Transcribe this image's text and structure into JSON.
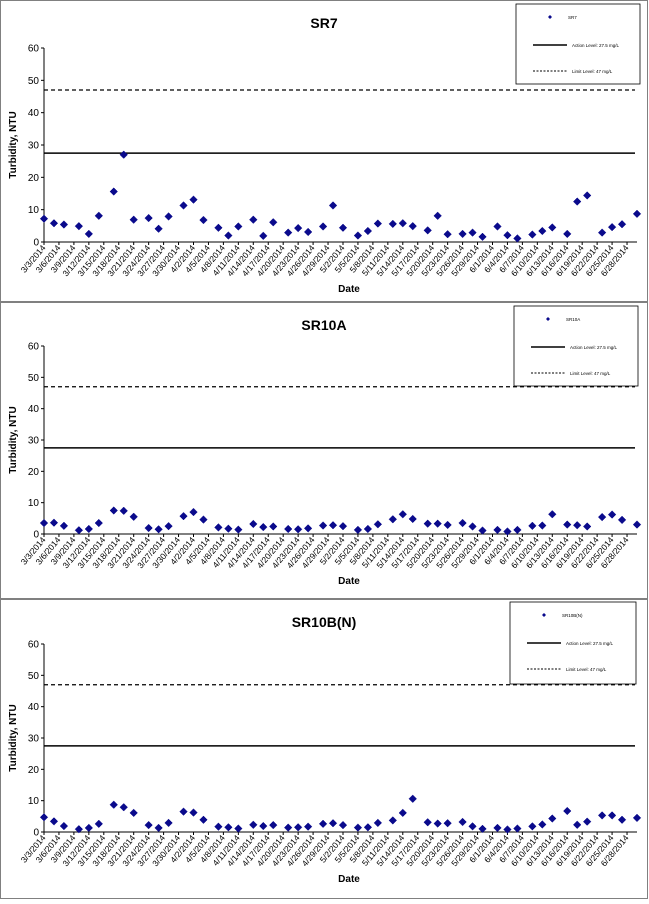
{
  "chart_data": [
    {
      "type": "scatter",
      "title": "SR7",
      "xlabel": "Date",
      "ylabel": "Turbidity, NTU",
      "ylim": [
        0,
        60
      ],
      "yticks": [
        "0",
        "10",
        "20",
        "30",
        "40",
        "50",
        "60"
      ],
      "x_tick_labels": [
        "3/3/2014",
        "3/6/2014",
        "3/9/2014",
        "3/12/2014",
        "3/15/2014",
        "3/18/2014",
        "3/21/2014",
        "3/24/2014",
        "3/27/2014",
        "3/30/2014",
        "4/2/2014",
        "4/5/2014",
        "4/8/2014",
        "4/11/2014",
        "4/14/2014",
        "4/17/2014",
        "4/20/2014",
        "4/23/2014",
        "4/26/2014",
        "4/29/2014",
        "5/2/2014",
        "5/5/2014",
        "5/8/2014",
        "5/11/2014",
        "5/14/2014",
        "5/17/2014",
        "5/20/2014",
        "5/23/2014",
        "5/26/2014",
        "5/29/2014",
        "6/1/2014",
        "6/4/2014",
        "6/7/2014",
        "6/10/2014",
        "6/13/2014",
        "6/16/2014",
        "6/19/2014",
        "6/22/2014",
        "6/25/2014",
        "6/28/2014"
      ],
      "legend": {
        "series_label": "SR7",
        "action_label": "Action Level: 27.5 mg/L",
        "limit_label": "Limit Level: 47 mg/L"
      },
      "action_level": 27.5,
      "limit_level": 47,
      "series": [
        {
          "x": [
            "3/3/2014",
            "3/5/2014",
            "3/7/2014",
            "3/10/2014",
            "3/12/2014",
            "3/14/2014",
            "3/17/2014",
            "3/19/2014",
            "3/21/2014",
            "3/24/2014",
            "3/26/2014",
            "3/28/2014",
            "3/31/2014",
            "4/2/2014",
            "4/4/2014",
            "4/7/2014",
            "4/9/2014",
            "4/11/2014",
            "4/14/2014",
            "4/16/2014",
            "4/18/2014",
            "4/21/2014",
            "4/23/2014",
            "4/25/2014",
            "4/28/2014",
            "4/30/2014",
            "5/2/2014",
            "5/5/2014",
            "5/7/2014",
            "5/9/2014",
            "5/12/2014",
            "5/14/2014",
            "5/16/2014",
            "5/19/2014",
            "5/21/2014",
            "5/23/2014",
            "5/26/2014",
            "5/28/2014",
            "5/30/2014",
            "6/2/2014",
            "6/4/2014",
            "6/6/2014",
            "6/9/2014",
            "6/11/2014",
            "6/13/2014",
            "6/16/2014",
            "6/18/2014",
            "6/20/2014",
            "6/23/2014",
            "6/25/2014",
            "6/27/2014",
            "6/30/2014"
          ],
          "y": [
            7.2,
            5.8,
            5.4,
            4.9,
            2.5,
            8.1,
            15.6,
            27.0,
            6.9,
            7.4,
            4.1,
            7.9,
            11.3,
            13.1,
            6.8,
            4.4,
            2.0,
            4.8,
            6.9,
            1.9,
            6.1,
            2.9,
            4.3,
            3.1,
            4.8,
            11.3,
            4.4,
            2.0,
            3.4,
            5.7,
            5.6,
            5.8,
            4.9,
            3.6,
            8.1,
            2.4,
            2.5,
            2.9,
            1.6,
            4.8,
            2.1,
            1.1,
            2.3,
            3.4,
            4.5,
            2.5,
            12.5,
            14.4,
            2.9,
            4.6,
            5.5,
            8.7
          ]
        }
      ]
    },
    {
      "type": "scatter",
      "title": "SR10A",
      "xlabel": "Date",
      "ylabel": "Turbidity, NTU",
      "ylim": [
        0,
        60
      ],
      "yticks": [
        "0",
        "10",
        "20",
        "30",
        "40",
        "50",
        "60"
      ],
      "x_tick_labels": [
        "3/3/2014",
        "3/6/2014",
        "3/9/2014",
        "3/12/2014",
        "3/15/2014",
        "3/18/2014",
        "3/21/2014",
        "3/24/2014",
        "3/27/2014",
        "3/30/2014",
        "4/2/2014",
        "4/5/2014",
        "4/8/2014",
        "4/11/2014",
        "4/14/2014",
        "4/17/2014",
        "4/20/2014",
        "4/23/2014",
        "4/26/2014",
        "4/29/2014",
        "5/2/2014",
        "5/5/2014",
        "5/8/2014",
        "5/11/2014",
        "5/14/2014",
        "5/17/2014",
        "5/20/2014",
        "5/23/2014",
        "5/26/2014",
        "5/29/2014",
        "6/1/2014",
        "6/4/2014",
        "6/7/2014",
        "6/10/2014",
        "6/13/2014",
        "6/16/2014",
        "6/19/2014",
        "6/22/2014",
        "6/25/2014",
        "6/28/2014"
      ],
      "legend": {
        "series_label": "SR10A",
        "action_label": "Action Level: 27.5 mg/L",
        "limit_label": "Limit Level: 47 mg/L"
      },
      "action_level": 27.5,
      "limit_level": 47,
      "series": [
        {
          "x": [
            "3/3/2014",
            "3/5/2014",
            "3/7/2014",
            "3/10/2014",
            "3/12/2014",
            "3/14/2014",
            "3/17/2014",
            "3/19/2014",
            "3/21/2014",
            "3/24/2014",
            "3/26/2014",
            "3/28/2014",
            "3/31/2014",
            "4/2/2014",
            "4/4/2014",
            "4/7/2014",
            "4/9/2014",
            "4/11/2014",
            "4/14/2014",
            "4/16/2014",
            "4/18/2014",
            "4/21/2014",
            "4/23/2014",
            "4/25/2014",
            "4/28/2014",
            "4/30/2014",
            "5/2/2014",
            "5/5/2014",
            "5/7/2014",
            "5/9/2014",
            "5/12/2014",
            "5/14/2014",
            "5/16/2014",
            "5/19/2014",
            "5/21/2014",
            "5/23/2014",
            "5/26/2014",
            "5/28/2014",
            "5/30/2014",
            "6/2/2014",
            "6/4/2014",
            "6/6/2014",
            "6/9/2014",
            "6/11/2014",
            "6/13/2014",
            "6/16/2014",
            "6/18/2014",
            "6/20/2014",
            "6/23/2014",
            "6/25/2014",
            "6/27/2014",
            "6/30/2014"
          ],
          "y": [
            3.5,
            3.6,
            2.6,
            1.2,
            1.6,
            3.5,
            7.5,
            7.4,
            5.5,
            1.9,
            1.5,
            2.5,
            5.7,
            7.0,
            4.6,
            2.1,
            1.7,
            1.4,
            3.2,
            2.2,
            2.4,
            1.6,
            1.5,
            1.8,
            2.7,
            2.8,
            2.5,
            1.3,
            1.6,
            3.1,
            4.7,
            6.3,
            4.8,
            3.3,
            3.3,
            2.9,
            3.5,
            2.4,
            1.1,
            1.3,
            0.8,
            1.3,
            2.6,
            2.7,
            6.3,
            3.0,
            2.8,
            2.4,
            5.4,
            6.2,
            4.5,
            3.0
          ]
        }
      ]
    },
    {
      "type": "scatter",
      "title": "SR10B(N)",
      "xlabel": "Date",
      "ylabel": "Turbidity, NTU",
      "ylim": [
        0,
        60
      ],
      "yticks": [
        "0",
        "10",
        "20",
        "30",
        "40",
        "50",
        "60"
      ],
      "x_tick_labels": [
        "3/3/2014",
        "3/6/2014",
        "3/9/2014",
        "3/12/2014",
        "3/15/2014",
        "3/18/2014",
        "3/21/2014",
        "3/24/2014",
        "3/27/2014",
        "3/30/2014",
        "4/2/2014",
        "4/5/2014",
        "4/8/2014",
        "4/11/2014",
        "4/14/2014",
        "4/17/2014",
        "4/20/2014",
        "4/23/2014",
        "4/26/2014",
        "4/29/2014",
        "5/2/2014",
        "5/5/2014",
        "5/8/2014",
        "5/11/2014",
        "5/14/2014",
        "5/17/2014",
        "5/20/2014",
        "5/23/2014",
        "5/26/2014",
        "5/29/2014",
        "6/1/2014",
        "6/4/2014",
        "6/7/2014",
        "6/10/2014",
        "6/13/2014",
        "6/16/2014",
        "6/19/2014",
        "6/22/2014",
        "6/25/2014",
        "6/28/2014"
      ],
      "legend": {
        "series_label": "SR10B(N)",
        "action_label": "Action Level: 27.5 mg/L",
        "limit_label": "Limit Level: 47 mg/L"
      },
      "action_level": 27.5,
      "limit_level": 47,
      "series": [
        {
          "x": [
            "3/3/2014",
            "3/5/2014",
            "3/7/2014",
            "3/10/2014",
            "3/12/2014",
            "3/14/2014",
            "3/17/2014",
            "3/19/2014",
            "3/21/2014",
            "3/24/2014",
            "3/26/2014",
            "3/28/2014",
            "3/31/2014",
            "4/2/2014",
            "4/4/2014",
            "4/7/2014",
            "4/9/2014",
            "4/11/2014",
            "4/14/2014",
            "4/16/2014",
            "4/18/2014",
            "4/21/2014",
            "4/23/2014",
            "4/25/2014",
            "4/28/2014",
            "4/30/2014",
            "5/2/2014",
            "5/5/2014",
            "5/7/2014",
            "5/9/2014",
            "5/12/2014",
            "5/14/2014",
            "5/16/2014",
            "5/19/2014",
            "5/21/2014",
            "5/23/2014",
            "5/26/2014",
            "5/28/2014",
            "5/30/2014",
            "6/2/2014",
            "6/4/2014",
            "6/6/2014",
            "6/9/2014",
            "6/11/2014",
            "6/13/2014",
            "6/16/2014",
            "6/18/2014",
            "6/20/2014",
            "6/23/2014",
            "6/25/2014",
            "6/27/2014",
            "6/30/2014"
          ],
          "y": [
            4.7,
            3.4,
            1.9,
            0.9,
            1.3,
            2.6,
            8.7,
            7.9,
            6.1,
            2.2,
            1.3,
            2.9,
            6.5,
            6.2,
            3.9,
            1.7,
            1.5,
            1.1,
            2.3,
            1.9,
            2.2,
            1.4,
            1.5,
            1.7,
            2.6,
            2.8,
            2.2,
            1.4,
            1.5,
            2.9,
            3.7,
            6.1,
            10.6,
            3.1,
            2.7,
            2.8,
            3.2,
            1.8,
            1.0,
            1.3,
            0.8,
            1.1,
            1.8,
            2.4,
            4.3,
            6.7,
            2.3,
            3.3,
            5.3,
            5.3,
            3.9,
            4.5
          ]
        }
      ]
    }
  ],
  "colors": {
    "marker": "#0a0a8c",
    "line": "#000000",
    "frame": "#808080"
  }
}
